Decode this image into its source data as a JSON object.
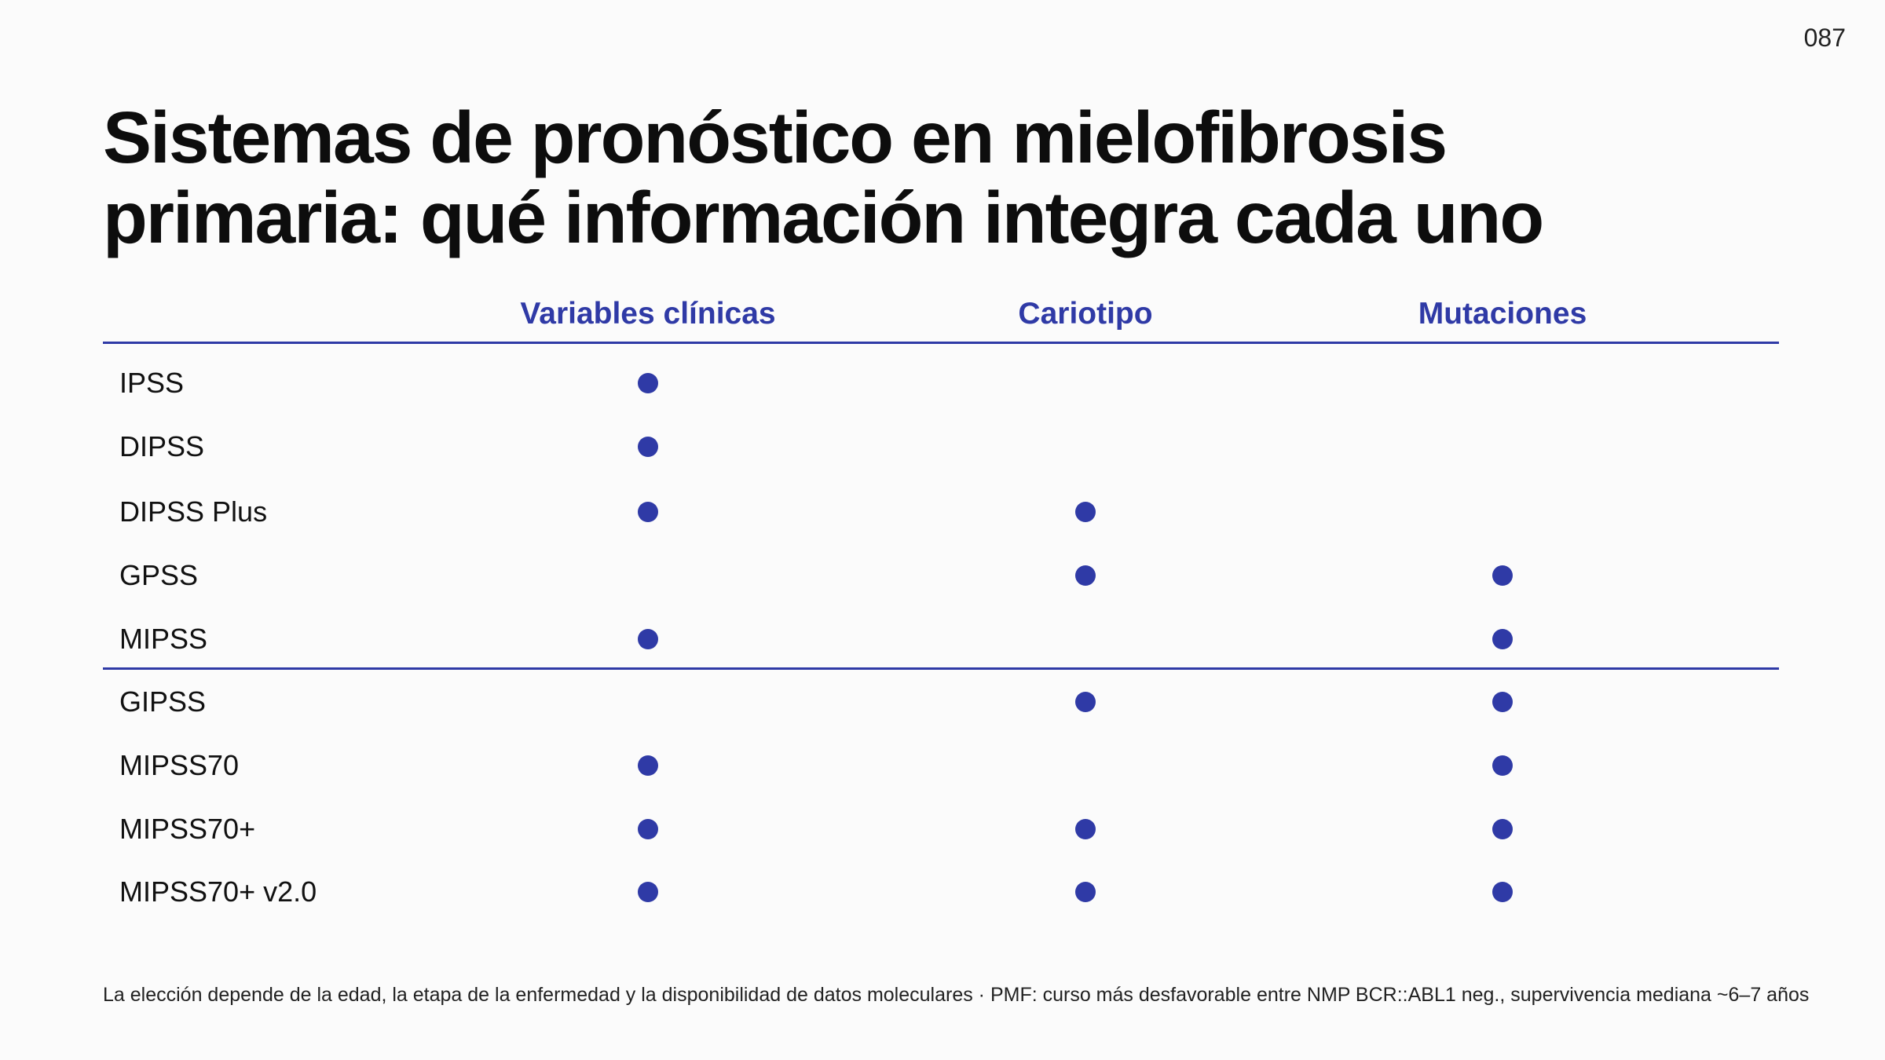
{
  "page_number": "087",
  "title": {
    "line1": "Sistemas de pronóstico en mielofibrosis",
    "line2": "primaria: qué información integra cada uno"
  },
  "columns": [
    "Variables clínicas",
    "Cariotipo",
    "Mutaciones"
  ],
  "accent_color": "#2f3aa6",
  "rows": [
    {
      "label": "IPSS",
      "clinical": true,
      "karyotype": false,
      "mutations": false
    },
    {
      "label": "DIPSS",
      "clinical": true,
      "karyotype": false,
      "mutations": false
    },
    {
      "label": "DIPSS Plus",
      "clinical": true,
      "karyotype": true,
      "mutations": false
    },
    {
      "label": "GPSS",
      "clinical": false,
      "karyotype": true,
      "mutations": true
    },
    {
      "label": "MIPSS",
      "clinical": true,
      "karyotype": false,
      "mutations": true
    },
    {
      "label": "GIPSS",
      "clinical": false,
      "karyotype": true,
      "mutations": true
    },
    {
      "label": "MIPSS70",
      "clinical": true,
      "karyotype": false,
      "mutations": true
    },
    {
      "label": "MIPSS70+",
      "clinical": true,
      "karyotype": true,
      "mutations": true
    },
    {
      "label": "MIPSS70+ v2.0",
      "clinical": true,
      "karyotype": true,
      "mutations": true
    }
  ],
  "footnote": "La elección depende de la edad, la etapa de la enfermedad y la disponibilidad de datos moleculares · PMF: curso más desfavorable entre NMP BCR::ABL1 neg., supervivencia mediana ~6–7 años"
}
